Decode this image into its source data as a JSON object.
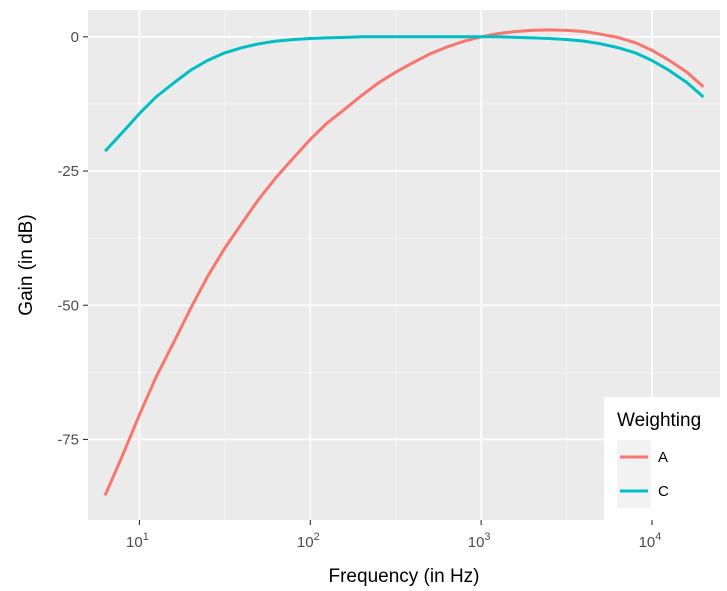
{
  "chart_data": {
    "type": "line",
    "title": "",
    "xlabel": "Frequency (in Hz)",
    "ylabel": "Gain (in dB)",
    "x_scale": "log10",
    "xlim": [
      5,
      25000
    ],
    "ylim": [
      -90,
      5
    ],
    "x_ticks": [
      {
        "value": 10,
        "base": "10",
        "exp": "1"
      },
      {
        "value": 100,
        "base": "10",
        "exp": "2"
      },
      {
        "value": 1000,
        "base": "10",
        "exp": "3"
      },
      {
        "value": 10000,
        "base": "10",
        "exp": "4"
      }
    ],
    "y_ticks": [
      {
        "value": 0,
        "label": "0"
      },
      {
        "value": -25,
        "label": "-25"
      },
      {
        "value": -50,
        "label": "-50"
      },
      {
        "value": -75,
        "label": "-75"
      }
    ],
    "grid": true,
    "background": "#ebebeb",
    "legend": {
      "title": "Weighting",
      "position": "bottom-right"
    },
    "x": [
      6.3,
      8,
      10,
      12.5,
      16,
      20,
      25,
      31.5,
      40,
      50,
      63,
      80,
      100,
      125,
      160,
      200,
      250,
      315,
      400,
      500,
      630,
      800,
      1000,
      1250,
      1600,
      2000,
      2500,
      3150,
      4000,
      5000,
      6300,
      8000,
      10000,
      12500,
      16000,
      20000
    ],
    "series": [
      {
        "name": "A",
        "color": "#f8766d",
        "values": [
          -85.4,
          -77.8,
          -70.4,
          -63.4,
          -56.7,
          -50.5,
          -44.7,
          -39.4,
          -34.6,
          -30.2,
          -26.2,
          -22.5,
          -19.1,
          -16.1,
          -13.4,
          -10.9,
          -8.6,
          -6.6,
          -4.8,
          -3.2,
          -1.9,
          -0.8,
          0.0,
          0.6,
          1.0,
          1.2,
          1.3,
          1.2,
          1.0,
          0.5,
          -0.1,
          -1.1,
          -2.5,
          -4.3,
          -6.6,
          -9.3
        ]
      },
      {
        "name": "C",
        "color": "#00bfc4",
        "values": [
          -21.3,
          -17.7,
          -14.3,
          -11.2,
          -8.5,
          -6.2,
          -4.4,
          -3.0,
          -2.0,
          -1.3,
          -0.8,
          -0.5,
          -0.3,
          -0.2,
          -0.1,
          0.0,
          0.0,
          0.0,
          0.0,
          0.0,
          0.0,
          0.0,
          0.0,
          0.0,
          -0.1,
          -0.2,
          -0.3,
          -0.5,
          -0.8,
          -1.3,
          -2.0,
          -3.0,
          -4.4,
          -6.2,
          -8.5,
          -11.2
        ]
      }
    ]
  }
}
